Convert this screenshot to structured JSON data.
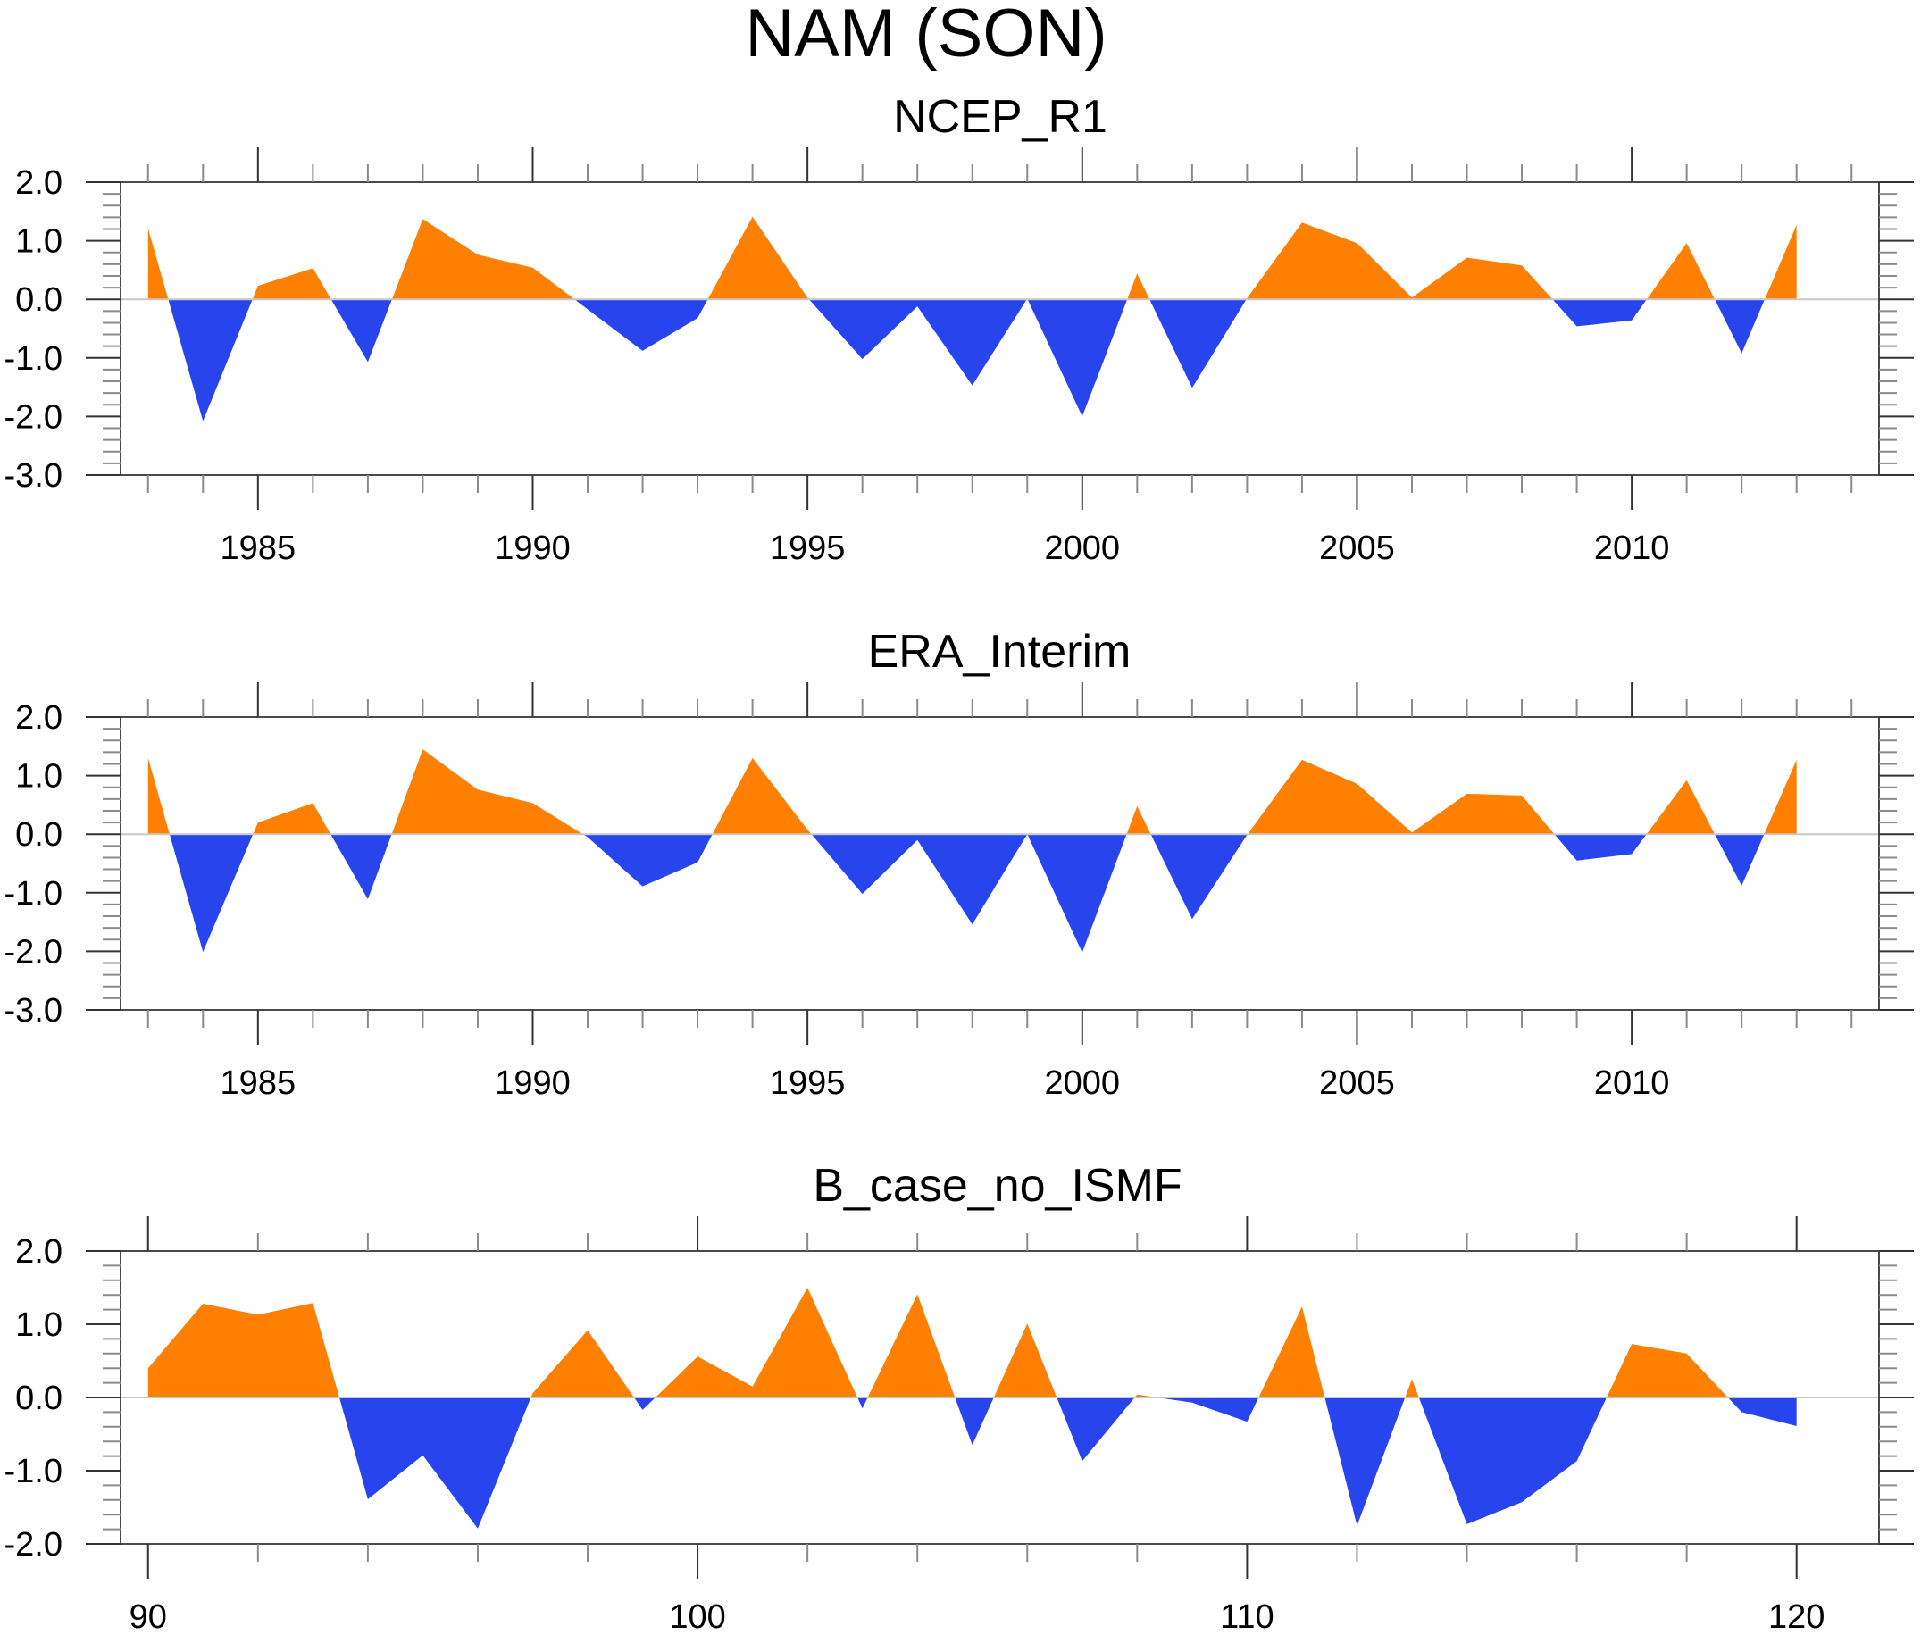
{
  "figure": {
    "title": "NAM (SON)"
  },
  "colors": {
    "positive": "#FF8000",
    "negative": "#2844EC",
    "zero_line": "#C8C8C8",
    "axis": "#4A4A4A"
  },
  "chart_data": [
    {
      "type": "area",
      "title": "NCEP_R1",
      "xlabel": "",
      "ylabel": "",
      "xlim": [
        1982.5,
        2014.5
      ],
      "ylim": [
        -3.0,
        2.0
      ],
      "yticks": [
        2.0,
        1.0,
        0.0,
        -1.0,
        -2.0,
        -3.0
      ],
      "ytick_labels": [
        "2.0",
        "1.0",
        "0.0",
        "-1.0",
        "-2.0",
        "-3.0"
      ],
      "y_minor_step": 0.2,
      "xticks_major": [
        1985,
        1990,
        1995,
        2000,
        2005,
        2010
      ],
      "xtick_labels": [
        "1985",
        "1990",
        "1995",
        "2000",
        "2005",
        "2010"
      ],
      "xticks_minor_start": 1983,
      "xticks_minor_end": 2014,
      "xticks_minor_step": 1,
      "reference_line": 0.0,
      "fill_above": "positive (orange)",
      "fill_below": "negative (blue)",
      "grid": false,
      "x": [
        1983,
        1984,
        1985,
        1986,
        1987,
        1988,
        1989,
        1990,
        1991,
        1992,
        1993,
        1994,
        1995,
        1996,
        1997,
        1998,
        1999,
        2000,
        2001,
        2002,
        2003,
        2004,
        2005,
        2006,
        2007,
        2008,
        2009,
        2010,
        2011,
        2012,
        2013
      ],
      "values": [
        1.21,
        -2.08,
        0.23,
        0.53,
        -1.07,
        1.37,
        0.76,
        0.54,
        -0.17,
        -0.88,
        -0.32,
        1.41,
        0.03,
        -1.02,
        -0.12,
        -1.47,
        0.01,
        -2.0,
        0.44,
        -1.51,
        0.02,
        1.31,
        0.96,
        0.03,
        0.71,
        0.58,
        -0.46,
        -0.36,
        0.96,
        -0.92,
        1.27
      ]
    },
    {
      "type": "area",
      "title": "ERA_Interim",
      "xlabel": "",
      "ylabel": "",
      "xlim": [
        1982.5,
        2014.5
      ],
      "ylim": [
        -3.0,
        2.0
      ],
      "yticks": [
        2.0,
        1.0,
        0.0,
        -1.0,
        -2.0,
        -3.0
      ],
      "ytick_labels": [
        "2.0",
        "1.0",
        "0.0",
        "-1.0",
        "-2.0",
        "-3.0"
      ],
      "y_minor_step": 0.2,
      "xticks_major": [
        1985,
        1990,
        1995,
        2000,
        2005,
        2010
      ],
      "xtick_labels": [
        "1985",
        "1990",
        "1995",
        "2000",
        "2005",
        "2010"
      ],
      "xticks_minor_start": 1983,
      "xticks_minor_end": 2014,
      "xticks_minor_step": 1,
      "reference_line": 0.0,
      "fill_above": "positive (orange)",
      "fill_below": "negative (blue)",
      "grid": false,
      "x": [
        1983,
        1984,
        1985,
        1986,
        1987,
        1988,
        1989,
        1990,
        1991,
        1992,
        1993,
        1994,
        1995,
        1996,
        1997,
        1998,
        1999,
        2000,
        2001,
        2002,
        2003,
        2004,
        2005,
        2006,
        2007,
        2008,
        2009,
        2010,
        2011,
        2012,
        2013
      ],
      "values": [
        1.3,
        -2.01,
        0.2,
        0.53,
        -1.11,
        1.45,
        0.76,
        0.53,
        -0.05,
        -0.89,
        -0.48,
        1.3,
        0.08,
        -1.02,
        -0.1,
        -1.54,
        0.0,
        -2.02,
        0.48,
        -1.45,
        -0.01,
        1.27,
        0.86,
        0.03,
        0.69,
        0.66,
        -0.45,
        -0.34,
        0.92,
        -0.88,
        1.27
      ]
    },
    {
      "type": "area",
      "title": "B_case_no_ISMF",
      "xlabel": "",
      "ylabel": "",
      "xlim": [
        89.5,
        121.5
      ],
      "ylim": [
        -2.0,
        2.0
      ],
      "yticks": [
        2.0,
        1.0,
        0.0,
        -1.0,
        -2.0
      ],
      "ytick_labels": [
        "2.0",
        "1.0",
        "0.0",
        "-1.0",
        "-2.0"
      ],
      "y_minor_step": 0.2,
      "xticks_major": [
        90,
        100,
        110,
        120
      ],
      "xtick_labels": [
        "90",
        "100",
        "110",
        "120"
      ],
      "xticks_minor_start": 90,
      "xticks_minor_end": 120,
      "xticks_minor_step": 2,
      "reference_line": 0.0,
      "fill_above": "positive (orange)",
      "fill_below": "negative (blue)",
      "grid": false,
      "x": [
        90,
        91,
        92,
        93,
        94,
        95,
        96,
        97,
        98,
        99,
        100,
        101,
        102,
        103,
        104,
        105,
        106,
        107,
        108,
        109,
        110,
        111,
        112,
        113,
        114,
        115,
        116,
        117,
        118,
        119,
        120
      ],
      "values": [
        0.4,
        1.28,
        1.13,
        1.29,
        -1.39,
        -0.79,
        -1.79,
        0.06,
        0.92,
        -0.17,
        0.56,
        0.15,
        1.5,
        -0.15,
        1.41,
        -0.65,
        1.01,
        -0.87,
        0.04,
        -0.07,
        -0.33,
        1.24,
        -1.75,
        0.25,
        -1.73,
        -1.43,
        -0.87,
        0.73,
        0.6,
        -0.2,
        -0.39
      ]
    }
  ]
}
